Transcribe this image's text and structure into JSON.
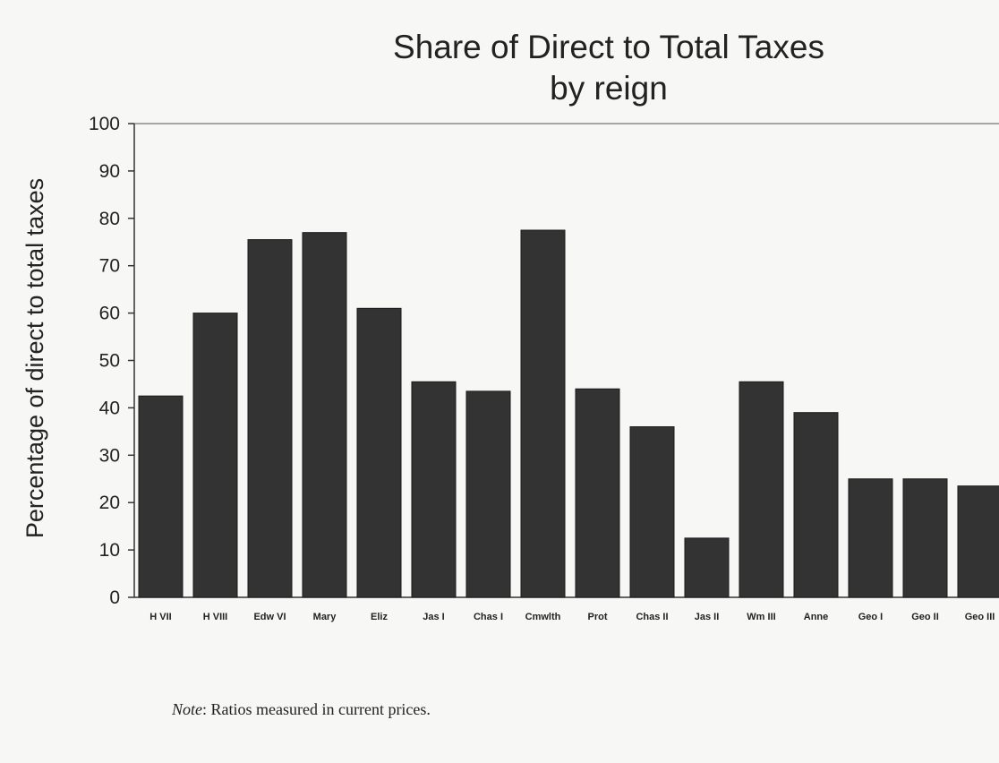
{
  "chart_data": {
    "type": "bar",
    "title": "Share of Direct to Total Taxes",
    "subtitle": "by reign",
    "xlabel": "",
    "ylabel": "Percentage of direct to total taxes",
    "ylim": [
      0,
      100
    ],
    "yticks": [
      "0",
      "10",
      "20",
      "30",
      "40",
      "50",
      "60",
      "70",
      "80",
      "90",
      "100"
    ],
    "categories": [
      "H VII",
      "H VIII",
      "Edw VI",
      "Mary",
      "Eliz",
      "Jas I",
      "Chas I",
      "Cmwlth",
      "Prot",
      "Chas II",
      "Jas II",
      "Wm III",
      "Anne",
      "Geo I",
      "Geo II",
      "Geo III"
    ],
    "values": [
      42.5,
      60,
      75.5,
      77,
      61,
      45.5,
      43.5,
      77.5,
      44,
      36,
      12.5,
      45.5,
      39,
      25,
      25,
      23.5
    ],
    "bar_color": "#333333",
    "grid": false
  },
  "note": {
    "label": "Note",
    "text": ": Ratios measured in current prices."
  }
}
